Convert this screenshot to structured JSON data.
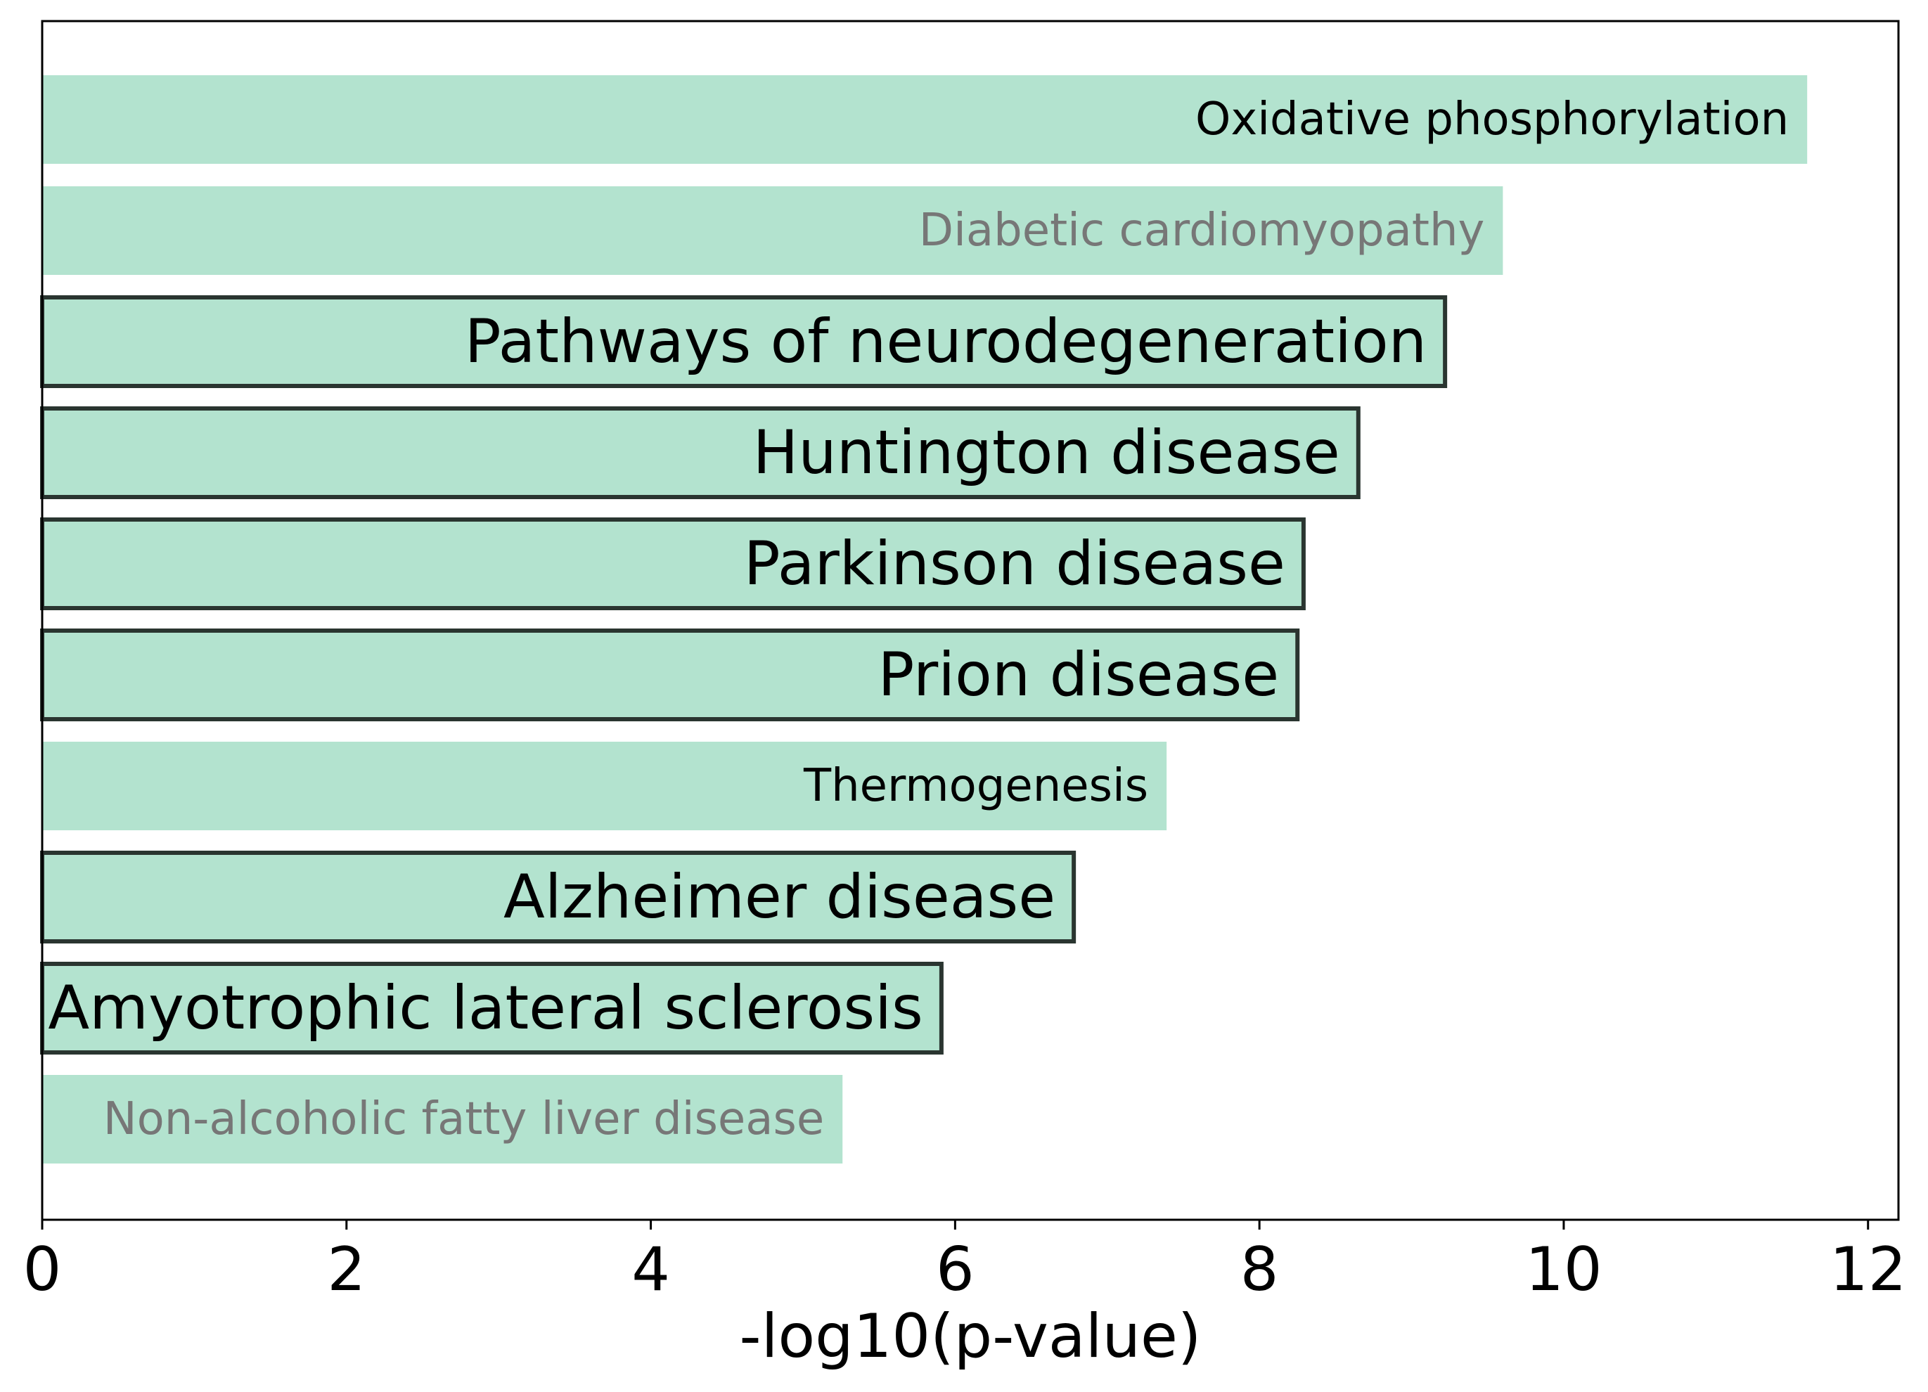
{
  "chart_data": {
    "type": "bar",
    "orientation": "horizontal",
    "xlabel": "-log10(p-value)",
    "ylabel": "",
    "title": "",
    "xlim": [
      0,
      12.2
    ],
    "xticks": [
      0,
      2,
      4,
      6,
      8,
      10,
      12
    ],
    "xtick_labels": [
      "0",
      "2",
      "4",
      "6",
      "8",
      "10",
      "12"
    ],
    "grid": false,
    "bar_color": "#b3e3cf",
    "outline_color": "#2a3530",
    "categories": [
      "Oxidative phosphorylation",
      "Diabetic cardiomyopathy",
      "Pathways of neurodegeneration",
      "Huntington disease",
      "Parkinson disease",
      "Prion disease",
      "Thermogenesis",
      "Alzheimer disease",
      "Amyotrophic lateral sclerosis",
      "Non-alcoholic fatty liver disease"
    ],
    "values": [
      11.6,
      9.6,
      9.22,
      8.65,
      8.29,
      8.25,
      7.39,
      6.78,
      5.91,
      5.26
    ],
    "highlighted": [
      false,
      false,
      true,
      true,
      true,
      true,
      false,
      true,
      true,
      false
    ],
    "label_styles": [
      "normal",
      "muted",
      "large",
      "large",
      "large",
      "large",
      "normal",
      "large",
      "large",
      "muted"
    ],
    "label_colors": {
      "normal": "#000000",
      "muted": "#777777",
      "large": "#000000"
    }
  }
}
